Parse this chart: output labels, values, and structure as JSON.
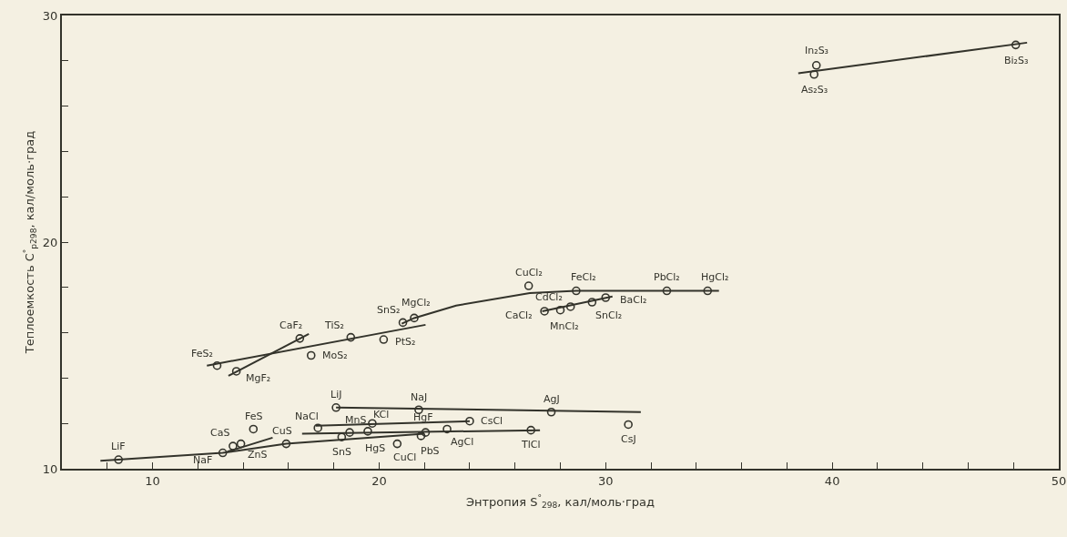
{
  "chart_data": {
    "type": "scatter",
    "xlabel": "Энтропия S$^{°}$$_{298}$, кал/моль·град",
    "ylabel": "Теплоемкость C$^{°}$$_{p298}$, кал/моль·град",
    "xlim": [
      6,
      50
    ],
    "xticks": [
      {
        "value": 8,
        "label": null
      },
      10,
      {
        "value": 12,
        "label": null
      },
      {
        "value": 14,
        "label": null
      },
      {
        "value": 16,
        "label": null
      },
      {
        "value": 18,
        "label": null
      },
      20,
      {
        "value": 22,
        "label": null
      },
      {
        "value": 24,
        "label": null
      },
      {
        "value": 26,
        "label": null
      },
      {
        "value": 28,
        "label": null
      },
      30,
      {
        "value": 32,
        "label": null
      },
      {
        "value": 34,
        "label": null
      },
      {
        "value": 36,
        "label": null
      },
      {
        "value": 38,
        "label": null
      },
      40,
      {
        "value": 42,
        "label": null
      },
      {
        "value": 44,
        "label": null
      },
      {
        "value": 46,
        "label": null
      },
      {
        "value": 48,
        "label": null
      },
      50
    ],
    "ylim": [
      10,
      30
    ],
    "yticks": [
      10,
      {
        "value": 12,
        "label": null
      },
      {
        "value": 14,
        "label": null
      },
      {
        "value": 16,
        "label": null
      },
      {
        "value": 18,
        "label": null
      },
      20,
      {
        "value": 22,
        "label": null
      },
      {
        "value": 24,
        "label": null
      },
      {
        "value": 26,
        "label": null
      },
      {
        "value": 28,
        "label": null
      },
      30
    ],
    "grid": false,
    "marker": "circle",
    "line_style": "solid",
    "series": [
      {
        "type": "line",
        "marker": "none",
        "color": "#33332b",
        "x": [
          7.7,
          13.1,
          15.9,
          22.0
        ],
        "values": [
          10.35,
          10.7,
          11.1,
          11.55
        ]
      },
      {
        "type": "line",
        "marker": "none",
        "color": "#33332b",
        "x": [
          13.3,
          15.3
        ],
        "values": [
          10.75,
          11.37
        ]
      },
      {
        "type": "line",
        "marker": "none",
        "color": "#33332b",
        "x": [
          16.6,
          27.1
        ],
        "values": [
          11.55,
          11.7
        ]
      },
      {
        "type": "line",
        "marker": "none",
        "color": "#33332b",
        "x": [
          18.1,
          31.55
        ],
        "values": [
          12.7,
          12.5
        ]
      },
      {
        "type": "line",
        "marker": "none",
        "color": "#33332b",
        "x": [
          17.2,
          24.0
        ],
        "values": [
          11.9,
          12.1
        ]
      },
      {
        "type": "line",
        "marker": "none",
        "color": "#33332b",
        "x": [
          12.4,
          22.05
        ],
        "values": [
          14.55,
          16.35
        ]
      },
      {
        "type": "line",
        "marker": "none",
        "color": "#33332b",
        "x": [
          13.35,
          16.9
        ],
        "values": [
          14.1,
          15.95
        ]
      },
      {
        "type": "line",
        "marker": "none",
        "color": "#33332b",
        "x": [
          21.0,
          21.55,
          23.4,
          26.65,
          28.7,
          35.0
        ],
        "values": [
          16.4,
          16.65,
          17.2,
          17.75,
          17.85,
          17.85
        ]
      },
      {
        "type": "line",
        "marker": "none",
        "color": "#33332b",
        "x": [
          27.2,
          30.3
        ],
        "values": [
          16.95,
          17.6
        ]
      },
      {
        "type": "line",
        "marker": "none",
        "color": "#33332b",
        "x": [
          38.5,
          48.6
        ],
        "values": [
          27.45,
          28.8
        ]
      },
      {
        "color": "#33332b",
        "x": [
          8.5,
          13.1,
          13.55,
          13.9,
          14.45,
          15.9,
          18.1,
          17.3,
          18.7,
          18.35,
          19.7,
          19.5,
          20.8,
          21.75,
          21.85,
          22.05,
          23.0,
          24.0,
          27.6,
          26.7,
          31.0,
          12.85,
          13.7,
          16.5,
          18.75,
          17.0,
          21.05,
          21.55,
          20.2,
          26.6,
          28.7,
          32.7,
          34.5,
          27.3,
          28.0,
          28.45,
          29.4,
          30.0,
          39.3,
          39.2,
          48.1
        ],
        "values": [
          10.4,
          10.7,
          11.0,
          11.1,
          11.75,
          11.1,
          12.7,
          11.8,
          11.6,
          11.4,
          12.0,
          11.65,
          11.1,
          12.6,
          11.45,
          11.6,
          11.75,
          12.1,
          12.5,
          11.7,
          11.95,
          14.55,
          14.3,
          15.75,
          15.8,
          15.0,
          16.45,
          16.65,
          15.7,
          18.07,
          17.85,
          17.85,
          17.85,
          16.95,
          17.0,
          17.15,
          17.35,
          17.55,
          27.8,
          27.4,
          28.7
        ]
      }
    ],
    "annotations": [
      {
        "text": "LiF",
        "x": 8.5,
        "y": 10.4
      },
      {
        "text": "NaF",
        "x": 13.1,
        "y": 10.7
      },
      {
        "text": "CaS",
        "x": 13.55,
        "y": 11.0
      },
      {
        "text": "ZnS",
        "x": 13.9,
        "y": 11.1
      },
      {
        "text": "FeS",
        "x": 14.45,
        "y": 11.75
      },
      {
        "text": "CuS",
        "x": 15.9,
        "y": 11.1
      },
      {
        "text": "LiJ",
        "x": 18.1,
        "y": 12.7
      },
      {
        "text": "NaCl",
        "x": 17.3,
        "y": 11.8
      },
      {
        "text": "MnS",
        "x": 18.7,
        "y": 11.6
      },
      {
        "text": "SnS",
        "x": 18.35,
        "y": 11.4
      },
      {
        "text": "KCl",
        "x": 19.7,
        "y": 12.0
      },
      {
        "text": "HgS",
        "x": 19.5,
        "y": 11.65
      },
      {
        "text": "CuCl",
        "x": 20.8,
        "y": 11.1
      },
      {
        "text": "NaJ",
        "x": 21.75,
        "y": 12.6
      },
      {
        "text": "PbS",
        "x": 21.85,
        "y": 11.45
      },
      {
        "text": "HgF",
        "x": 22.05,
        "y": 11.6
      },
      {
        "text": "AgCl",
        "x": 23.0,
        "y": 11.75
      },
      {
        "text": "CsCl",
        "x": 24.0,
        "y": 12.1
      },
      {
        "text": "AgJ",
        "x": 27.6,
        "y": 12.5
      },
      {
        "text": "TlCl",
        "x": 26.7,
        "y": 11.7
      },
      {
        "text": "CsJ",
        "x": 31.0,
        "y": 11.95
      },
      {
        "text": "FeS₂",
        "x": 12.85,
        "y": 14.55
      },
      {
        "text": "MgF₂",
        "x": 13.7,
        "y": 14.3
      },
      {
        "text": "CaF₂",
        "x": 16.5,
        "y": 15.75
      },
      {
        "text": "TiS₂",
        "x": 18.75,
        "y": 15.8
      },
      {
        "text": "MoS₂",
        "x": 17.0,
        "y": 15.0
      },
      {
        "text": "SnS₂",
        "x": 21.05,
        "y": 16.45
      },
      {
        "text": "MgCl₂",
        "x": 21.55,
        "y": 16.65
      },
      {
        "text": "PtS₂",
        "x": 20.2,
        "y": 15.7
      },
      {
        "text": "CuCl₂",
        "x": 26.6,
        "y": 18.07
      },
      {
        "text": "FeCl₂",
        "x": 28.7,
        "y": 17.85
      },
      {
        "text": "PbCl₂",
        "x": 32.7,
        "y": 17.85
      },
      {
        "text": "HgCl₂",
        "x": 34.5,
        "y": 17.85
      },
      {
        "text": "CaCl₂",
        "x": 27.3,
        "y": 16.95
      },
      {
        "text": "MnCl₂",
        "x": 28.0,
        "y": 17.0
      },
      {
        "text": "CdCl₂",
        "x": 28.45,
        "y": 17.15
      },
      {
        "text": "SnCl₂",
        "x": 29.4,
        "y": 17.35
      },
      {
        "text": "BaCl₂",
        "x": 30.0,
        "y": 17.55
      },
      {
        "text": "In₂S₃",
        "x": 39.3,
        "y": 27.8
      },
      {
        "text": "As₂S₃",
        "x": 39.2,
        "y": 27.4
      },
      {
        "text": "Bi₂S₃",
        "x": 48.1,
        "y": 28.7
      }
    ]
  }
}
